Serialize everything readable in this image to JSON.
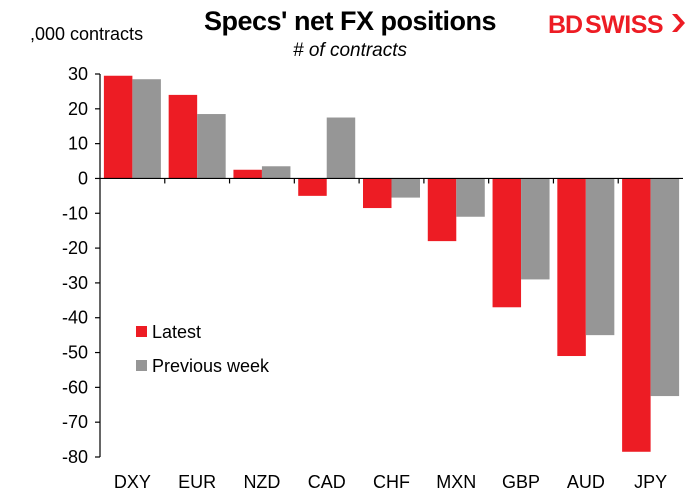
{
  "header": {
    "title": "Specs' net FX positions",
    "subtitle": "# of contracts",
    "logo_text": "BDSWISS"
  },
  "colors": {
    "latest": "#ed1c24",
    "previous": "#969696",
    "axis": "#000000"
  },
  "chart_data": {
    "type": "bar",
    "title": "Specs' net FX positions",
    "subtitle": "# of contracts",
    "ylabel": ",000 contracts",
    "xlabel": "",
    "categories": [
      "DXY",
      "EUR",
      "NZD",
      "CAD",
      "CHF",
      "MXN",
      "GBP",
      "AUD",
      "JPY"
    ],
    "series": [
      {
        "name": "Latest",
        "values": [
          29.5,
          24,
          2.5,
          -5,
          -8.5,
          -18,
          -37,
          -51,
          -78.5
        ]
      },
      {
        "name": "Previous week",
        "values": [
          28.5,
          18.5,
          3.5,
          17.5,
          -5.5,
          -11,
          -29,
          -45,
          -62.5
        ]
      }
    ],
    "ylim": [
      -80,
      30
    ],
    "yticks": [
      30,
      20,
      10,
      0,
      -10,
      -20,
      -30,
      -40,
      -50,
      -60,
      -70,
      -80
    ],
    "grid": false,
    "legend_position": "left-bottom"
  }
}
